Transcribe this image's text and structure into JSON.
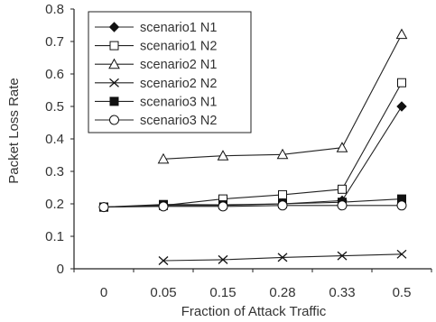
{
  "chart_data": {
    "type": "line",
    "xlabel": "Fraction of Attack Traffic",
    "ylabel": "Packet Loss Rate",
    "categories": [
      "0",
      "0.05",
      "0.15",
      "0.28",
      "0.33",
      "0.5"
    ],
    "ylim": [
      0,
      0.8
    ],
    "yticks": [
      "0",
      "0.1",
      "0.2",
      "0.3",
      "0.4",
      "0.5",
      "0.6",
      "0.7",
      "0.8"
    ],
    "grid": false,
    "legend_position": "top-left",
    "series": [
      {
        "name": "scenario1 N1",
        "marker": "filled-diamond",
        "values": [
          0.19,
          0.195,
          0.195,
          0.2,
          0.21,
          0.5
        ]
      },
      {
        "name": "scenario1 N2",
        "marker": "open-square",
        "values": [
          0.19,
          0.195,
          0.215,
          0.228,
          0.245,
          0.573
        ]
      },
      {
        "name": "scenario2 N1",
        "marker": "open-triangle",
        "values": [
          null,
          0.338,
          0.348,
          0.352,
          0.373,
          0.722
        ]
      },
      {
        "name": "scenario2 N2",
        "marker": "x",
        "values": [
          null,
          0.025,
          0.028,
          0.035,
          0.04,
          0.045
        ]
      },
      {
        "name": "scenario3 N1",
        "marker": "filled-square",
        "values": [
          0.19,
          0.198,
          0.197,
          0.2,
          0.205,
          0.215
        ]
      },
      {
        "name": "scenario3 N2",
        "marker": "open-circle",
        "values": [
          0.19,
          0.192,
          0.192,
          0.195,
          0.195,
          0.195
        ]
      }
    ]
  }
}
